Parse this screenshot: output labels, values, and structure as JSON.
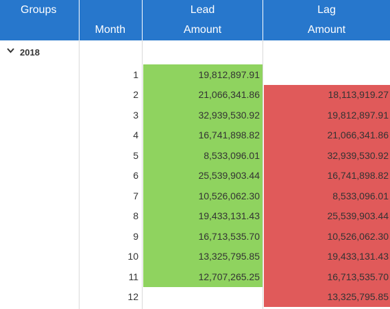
{
  "header": {
    "groups_label": "Groups",
    "month_label": "Month",
    "lead_top": "Lead",
    "lead_bottom": "Amount",
    "lag_top": "Lag",
    "lag_bottom": "Amount"
  },
  "colors": {
    "header_bg": "#2777cc",
    "lead_fill": "#8fd35f",
    "lag_fill": "#e05a5a"
  },
  "group": {
    "label": "2018",
    "icon": "chevron-down-icon",
    "expanded": true
  },
  "rows": [
    {
      "month": "1",
      "lead": "19,812,897.91",
      "lag": ""
    },
    {
      "month": "2",
      "lead": "21,066,341.86",
      "lag": "18,113,919.27"
    },
    {
      "month": "3",
      "lead": "32,939,530.92",
      "lag": "19,812,897.91"
    },
    {
      "month": "4",
      "lead": "16,741,898.82",
      "lag": "21,066,341.86"
    },
    {
      "month": "5",
      "lead": "8,533,096.01",
      "lag": "32,939,530.92"
    },
    {
      "month": "6",
      "lead": "25,539,903.44",
      "lag": "16,741,898.82"
    },
    {
      "month": "7",
      "lead": "10,526,062.30",
      "lag": "8,533,096.01"
    },
    {
      "month": "8",
      "lead": "19,433,131.43",
      "lag": "25,539,903.44"
    },
    {
      "month": "9",
      "lead": "16,713,535.70",
      "lag": "10,526,062.30"
    },
    {
      "month": "10",
      "lead": "13,325,795.85",
      "lag": "19,433,131.43"
    },
    {
      "month": "11",
      "lead": "12,707,265.25",
      "lag": "16,713,535.70"
    },
    {
      "month": "12",
      "lead": "",
      "lag": "13,325,795.85"
    }
  ]
}
